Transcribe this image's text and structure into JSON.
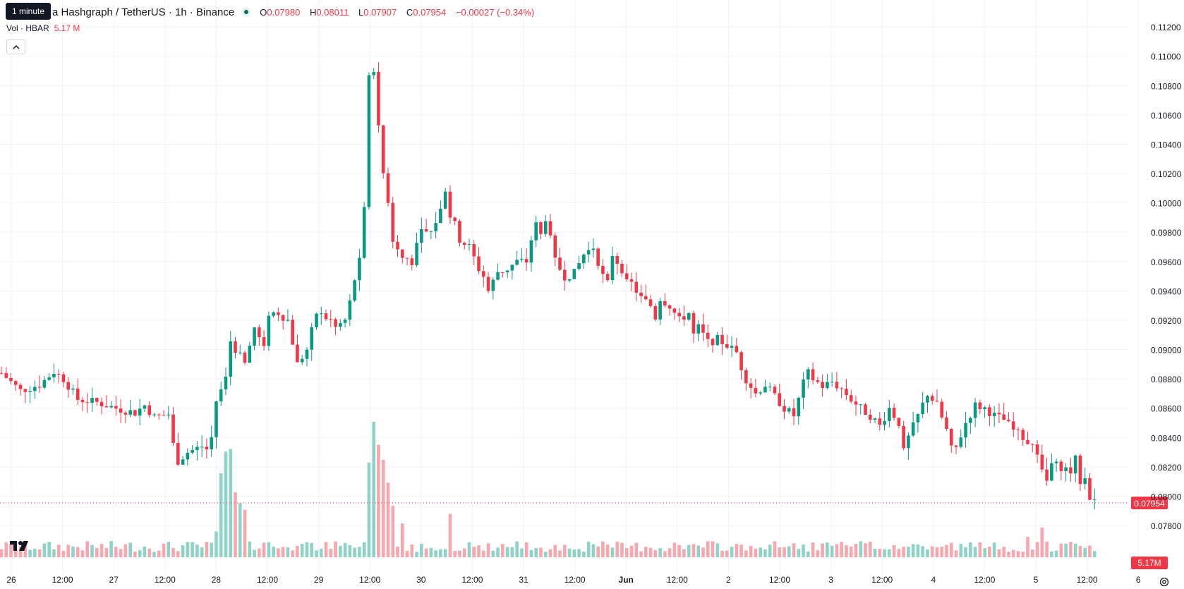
{
  "header": {
    "title": "a Hashgraph / TetherUS · 1h · Binance",
    "tooltip": "1 minute",
    "ohlc": [
      {
        "key": "O",
        "value": "0.07980"
      },
      {
        "key": "H",
        "value": "0.08011"
      },
      {
        "key": "L",
        "value": "0.07907"
      },
      {
        "key": "C",
        "value": "0.07954"
      }
    ],
    "change": "−0.00027 (−0.34%)",
    "volume_label": "Vol · HBAR",
    "volume_value": "5.17 M"
  },
  "colors": {
    "up": "#089981",
    "down": "#f23645",
    "volume_up": "#8fd3c7",
    "volume_down": "#f7a7ae",
    "grid": "#f0f3fa",
    "axis_text": "#131722"
  },
  "icons": [
    "tradingview-logo-icon",
    "chevron-up-icon",
    "settings-icon"
  ],
  "chart_data": {
    "type": "candlestick",
    "title": "a Hashgraph / TetherUS · 1h · Binance",
    "grid": true,
    "ylim": [
      0.0768,
      0.1122
    ],
    "y_ticks": [
      "0.07800",
      "0.08000",
      "0.08200",
      "0.08400",
      "0.08600",
      "0.08800",
      "0.09000",
      "0.09200",
      "0.09400",
      "0.09600",
      "0.09800",
      "0.10000",
      "0.10200",
      "0.10400",
      "0.10600",
      "0.10800",
      "0.11000",
      "0.11200"
    ],
    "x_ticks": [
      "26",
      "12:00",
      "27",
      "12:00",
      "28",
      "12:00",
      "29",
      "12:00",
      "30",
      "12:00",
      "31",
      "12:00",
      "Jun",
      "12:00",
      "2",
      "12:00",
      "3",
      "12:00",
      "4",
      "12:00",
      "5",
      "12:00",
      "6"
    ],
    "bold_tick": "Jun",
    "last_price": "0.07954",
    "last_volume": "5.17M",
    "close_path": [
      [
        0,
        0.0884
      ],
      [
        4,
        0.0872
      ],
      [
        8,
        0.0876
      ],
      [
        11,
        0.0885
      ],
      [
        13,
        0.088
      ],
      [
        16,
        0.0866
      ],
      [
        20,
        0.0864
      ],
      [
        24,
        0.086
      ],
      [
        28,
        0.0857
      ],
      [
        30,
        0.0862
      ],
      [
        32,
        0.0854
      ],
      [
        35,
        0.0856
      ],
      [
        36,
        0.0835
      ],
      [
        37,
        0.0824
      ],
      [
        39,
        0.083
      ],
      [
        42,
        0.0834
      ],
      [
        43,
        0.0832
      ],
      [
        44,
        0.084
      ],
      [
        45,
        0.0865
      ],
      [
        47,
        0.088
      ],
      [
        48,
        0.0906
      ],
      [
        50,
        0.0895
      ],
      [
        51,
        0.089
      ],
      [
        53,
        0.0915
      ],
      [
        55,
        0.09
      ],
      [
        56,
        0.0925
      ],
      [
        58,
        0.0925
      ],
      [
        60,
        0.092
      ],
      [
        61,
        0.0905
      ],
      [
        62,
        0.089
      ],
      [
        64,
        0.09
      ],
      [
        66,
        0.0925
      ],
      [
        69,
        0.092
      ],
      [
        70,
        0.0915
      ],
      [
        72,
        0.092
      ],
      [
        73,
        0.0932
      ],
      [
        74,
        0.0948
      ],
      [
        75,
        0.096
      ],
      [
        76,
        0.0995
      ],
      [
        77,
        0.1088
      ],
      [
        78,
        0.1092
      ],
      [
        79,
        0.105
      ],
      [
        80,
        0.102
      ],
      [
        81,
        0.1002
      ],
      [
        82,
        0.0975
      ],
      [
        84,
        0.0965
      ],
      [
        86,
        0.096
      ],
      [
        88,
        0.098
      ],
      [
        90,
        0.098
      ],
      [
        92,
        0.0995
      ],
      [
        93,
        0.101
      ],
      [
        94,
        0.099
      ],
      [
        95,
        0.0985
      ],
      [
        96,
        0.0975
      ],
      [
        98,
        0.097
      ],
      [
        100,
        0.0955
      ],
      [
        101,
        0.095
      ],
      [
        102,
        0.094
      ],
      [
        104,
        0.0953
      ],
      [
        106,
        0.0955
      ],
      [
        108,
        0.096
      ],
      [
        110,
        0.096
      ],
      [
        111,
        0.0975
      ],
      [
        112,
        0.0985
      ],
      [
        113,
        0.0978
      ],
      [
        114,
        0.099
      ],
      [
        115,
        0.0975
      ],
      [
        116,
        0.096
      ],
      [
        117,
        0.0955
      ],
      [
        118,
        0.095
      ],
      [
        120,
        0.0952
      ],
      [
        122,
        0.0965
      ],
      [
        124,
        0.097
      ],
      [
        125,
        0.096
      ],
      [
        126,
        0.095
      ],
      [
        127,
        0.0945
      ],
      [
        128,
        0.0965
      ],
      [
        129,
        0.096
      ],
      [
        130,
        0.0955
      ],
      [
        131,
        0.0945
      ],
      [
        132,
        0.0945
      ],
      [
        134,
        0.0935
      ],
      [
        136,
        0.093
      ],
      [
        137,
        0.0922
      ],
      [
        138,
        0.0935
      ],
      [
        140,
        0.093
      ],
      [
        142,
        0.092
      ],
      [
        144,
        0.0925
      ],
      [
        145,
        0.091
      ],
      [
        146,
        0.0915
      ],
      [
        148,
        0.0905
      ],
      [
        150,
        0.0907
      ],
      [
        152,
        0.0903
      ],
      [
        154,
        0.0898
      ],
      [
        155,
        0.0888
      ],
      [
        156,
        0.088
      ],
      [
        158,
        0.087
      ],
      [
        160,
        0.0876
      ],
      [
        162,
        0.0868
      ],
      [
        164,
        0.086
      ],
      [
        166,
        0.0855
      ],
      [
        168,
        0.0877
      ],
      [
        169,
        0.0884
      ],
      [
        170,
        0.088
      ],
      [
        172,
        0.0875
      ],
      [
        174,
        0.0878
      ],
      [
        176,
        0.0873
      ],
      [
        178,
        0.0866
      ],
      [
        180,
        0.086
      ],
      [
        182,
        0.0855
      ],
      [
        184,
        0.0848
      ],
      [
        186,
        0.086
      ],
      [
        188,
        0.085
      ],
      [
        189,
        0.083
      ],
      [
        190,
        0.084
      ],
      [
        192,
        0.0855
      ],
      [
        194,
        0.087
      ],
      [
        196,
        0.0862
      ],
      [
        198,
        0.0845
      ],
      [
        199,
        0.0832
      ],
      [
        200,
        0.0833
      ],
      [
        202,
        0.085
      ],
      [
        204,
        0.0862
      ],
      [
        206,
        0.086
      ],
      [
        208,
        0.0855
      ],
      [
        210,
        0.0852
      ],
      [
        212,
        0.0845
      ],
      [
        214,
        0.084
      ],
      [
        216,
        0.0833
      ],
      [
        218,
        0.0818
      ],
      [
        219,
        0.081
      ],
      [
        220,
        0.0822
      ],
      [
        222,
        0.082
      ],
      [
        224,
        0.0817
      ],
      [
        225,
        0.0825
      ],
      [
        226,
        0.081
      ],
      [
        227,
        0.0812
      ],
      [
        228,
        0.08
      ],
      [
        229,
        0.0796
      ]
    ],
    "volume_spikes": [
      [
        46,
        0.62
      ],
      [
        47,
        0.78
      ],
      [
        48,
        0.8
      ],
      [
        49,
        0.48
      ],
      [
        50,
        0.4
      ],
      [
        51,
        0.35
      ],
      [
        77,
        0.7
      ],
      [
        78,
        1.0
      ],
      [
        79,
        0.83
      ],
      [
        80,
        0.72
      ],
      [
        81,
        0.55
      ],
      [
        82,
        0.38
      ],
      [
        45,
        0.19
      ],
      [
        84,
        0.25
      ],
      [
        94,
        0.32
      ],
      [
        218,
        0.22
      ],
      [
        215,
        0.15
      ]
    ]
  }
}
